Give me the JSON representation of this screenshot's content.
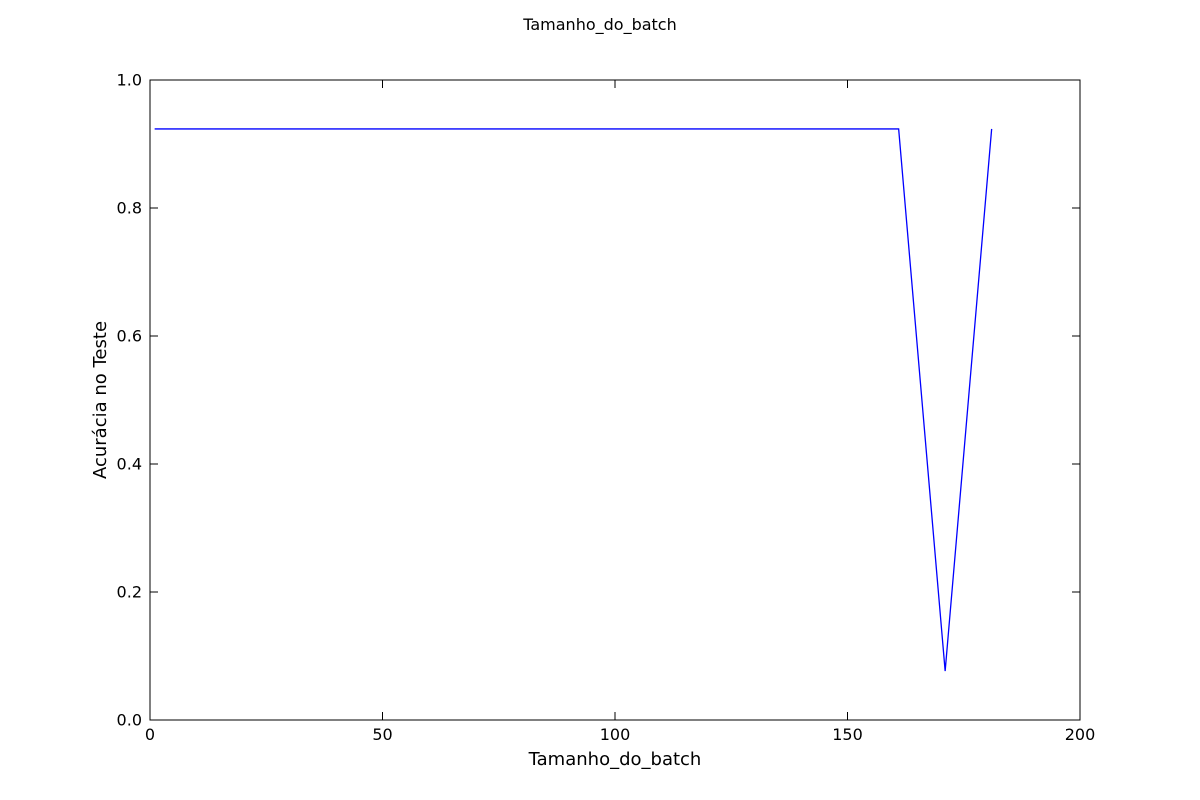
{
  "chart_data": {
    "type": "line",
    "title": "Tamanho_do_batch",
    "xlabel": "Tamanho_do_batch",
    "ylabel": "Acurácia no Teste",
    "xlim": [
      0,
      200
    ],
    "ylim": [
      0.0,
      1.0
    ],
    "xticks": [
      0,
      50,
      100,
      150,
      200
    ],
    "xtick_labels": [
      "0",
      "50",
      "100",
      "150",
      "200"
    ],
    "yticks": [
      0.0,
      0.2,
      0.4,
      0.6,
      0.8,
      1.0
    ],
    "ytick_labels": [
      "0.0",
      "0.2",
      "0.4",
      "0.6",
      "0.8",
      "1.0"
    ],
    "grid": false,
    "colors": {
      "series": "#0000ff",
      "frame": "#000000",
      "background": "#ffffff"
    },
    "series": [
      {
        "x": [
          1,
          11,
          21,
          31,
          41,
          51,
          61,
          71,
          81,
          91,
          101,
          111,
          121,
          131,
          141,
          151,
          161,
          171,
          181
        ],
        "y": [
          0.9235,
          0.9235,
          0.9235,
          0.9235,
          0.9235,
          0.9235,
          0.9235,
          0.9235,
          0.9235,
          0.9235,
          0.9235,
          0.9235,
          0.9235,
          0.9235,
          0.9235,
          0.9235,
          0.9235,
          0.0765,
          0.9235
        ]
      }
    ]
  }
}
